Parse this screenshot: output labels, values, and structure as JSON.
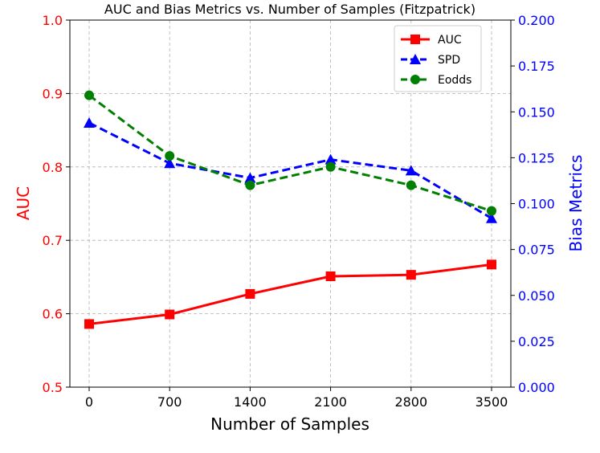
{
  "chart_data": {
    "type": "line",
    "title": "AUC and Bias Metrics vs. Number of Samples (Fitzpatrick)",
    "xlabel": "Number of Samples",
    "ylabel_left": "AUC",
    "ylabel_right": "Bias Metrics",
    "x": [
      0,
      700,
      1400,
      2100,
      2800,
      3500
    ],
    "x_tick_labels": [
      "0",
      "700",
      "1400",
      "2100",
      "2800",
      "3500"
    ],
    "ylim_left": [
      0.5,
      1.0
    ],
    "y_left_ticks": [
      "0.5",
      "0.6",
      "0.7",
      "0.8",
      "0.9",
      "1.0"
    ],
    "ylim_right": [
      0.0,
      0.2
    ],
    "y_right_ticks": [
      "0.000",
      "0.025",
      "0.050",
      "0.075",
      "0.100",
      "0.125",
      "0.150",
      "0.175",
      "0.200"
    ],
    "grid": true,
    "legend_position": "top-right",
    "left_axis_color": "#ff0000",
    "right_axis_color": "#0000ff",
    "series": [
      {
        "name": "AUC",
        "axis": "left",
        "color": "#ff0000",
        "marker": "square",
        "line_style": "solid",
        "values": [
          0.586,
          0.599,
          0.627,
          0.651,
          0.653,
          0.667
        ]
      },
      {
        "name": "SPD",
        "axis": "right",
        "color": "#0000ff",
        "marker": "triangle",
        "line_style": "dashed",
        "values": [
          0.144,
          0.122,
          0.114,
          0.124,
          0.118,
          0.092
        ]
      },
      {
        "name": "Eodds",
        "axis": "right",
        "color": "#008000",
        "marker": "circle",
        "line_style": "dashed",
        "values": [
          0.159,
          0.126,
          0.11,
          0.12,
          0.11,
          0.096
        ]
      }
    ]
  }
}
